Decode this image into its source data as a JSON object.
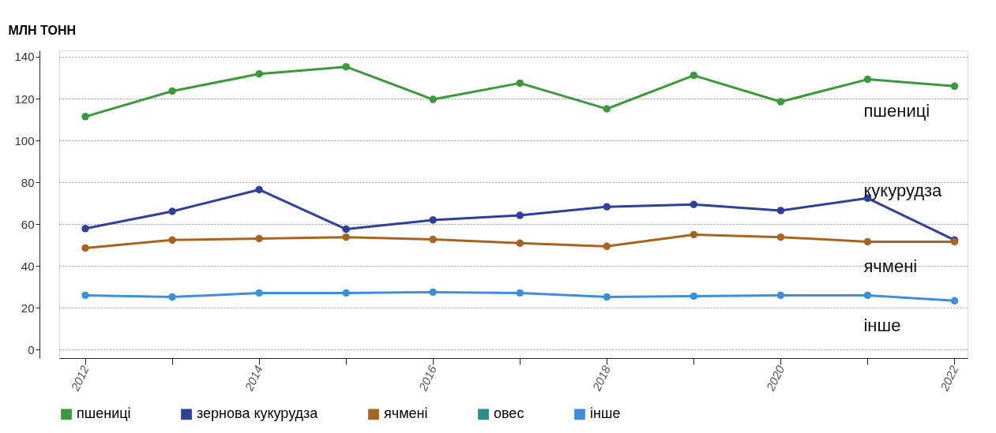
{
  "chart_data": {
    "type": "line",
    "ylabel": "МЛН ТОНН",
    "x": [
      2012,
      2013,
      2014,
      2015,
      2016,
      2017,
      2018,
      2019,
      2020,
      2021,
      2022
    ],
    "xlim": [
      2011.7,
      2022.15
    ],
    "ylim": [
      -4,
      143
    ],
    "xticks": [
      2012,
      {
        "value": 2013,
        "label": null
      },
      2014,
      {
        "value": 2015,
        "label": null
      },
      2016,
      {
        "value": 2017,
        "label": null
      },
      2018,
      {
        "value": 2019,
        "label": null
      },
      2020,
      {
        "value": 2021,
        "label": null
      },
      2022
    ],
    "yticks": [
      0,
      20,
      40,
      60,
      80,
      100,
      120,
      140
    ],
    "grid": "y",
    "legend": "bottom",
    "marker": "circle",
    "line_style": "solid",
    "series": [
      {
        "name": "пшениці",
        "color": "#3a9a3a",
        "values": [
          111.4,
          123.6,
          131.8,
          135.2,
          119.6,
          127.4,
          115.1,
          131.1,
          118.5,
          129.2,
          125.9
        ]
      },
      {
        "name": "зернова кукурудза",
        "color": "#2e3f9e",
        "values": [
          57.9,
          66.1,
          76.5,
          57.6,
          62.0,
          64.2,
          68.3,
          69.4,
          66.5,
          72.4,
          52.4
        ]
      },
      {
        "name": "ячмені",
        "color": "#a8641e",
        "values": [
          48.6,
          52.4,
          53.1,
          53.8,
          52.7,
          50.9,
          49.4,
          55.0,
          53.8,
          51.6,
          51.6
        ]
      },
      {
        "name": "овес",
        "color": "#2a8f8a",
        "values": [
          null,
          null,
          null,
          null,
          null,
          null,
          null,
          null,
          null,
          null,
          null
        ]
      },
      {
        "name": "інше",
        "color": "#3d8fdc",
        "values": [
          26.0,
          25.2,
          27.1,
          27.1,
          27.5,
          27.1,
          25.2,
          25.6,
          26.0,
          26.0,
          23.4
        ]
      }
    ],
    "annotations": [
      "пшениці",
      "кукурудза",
      "ячмені",
      "інше"
    ]
  }
}
